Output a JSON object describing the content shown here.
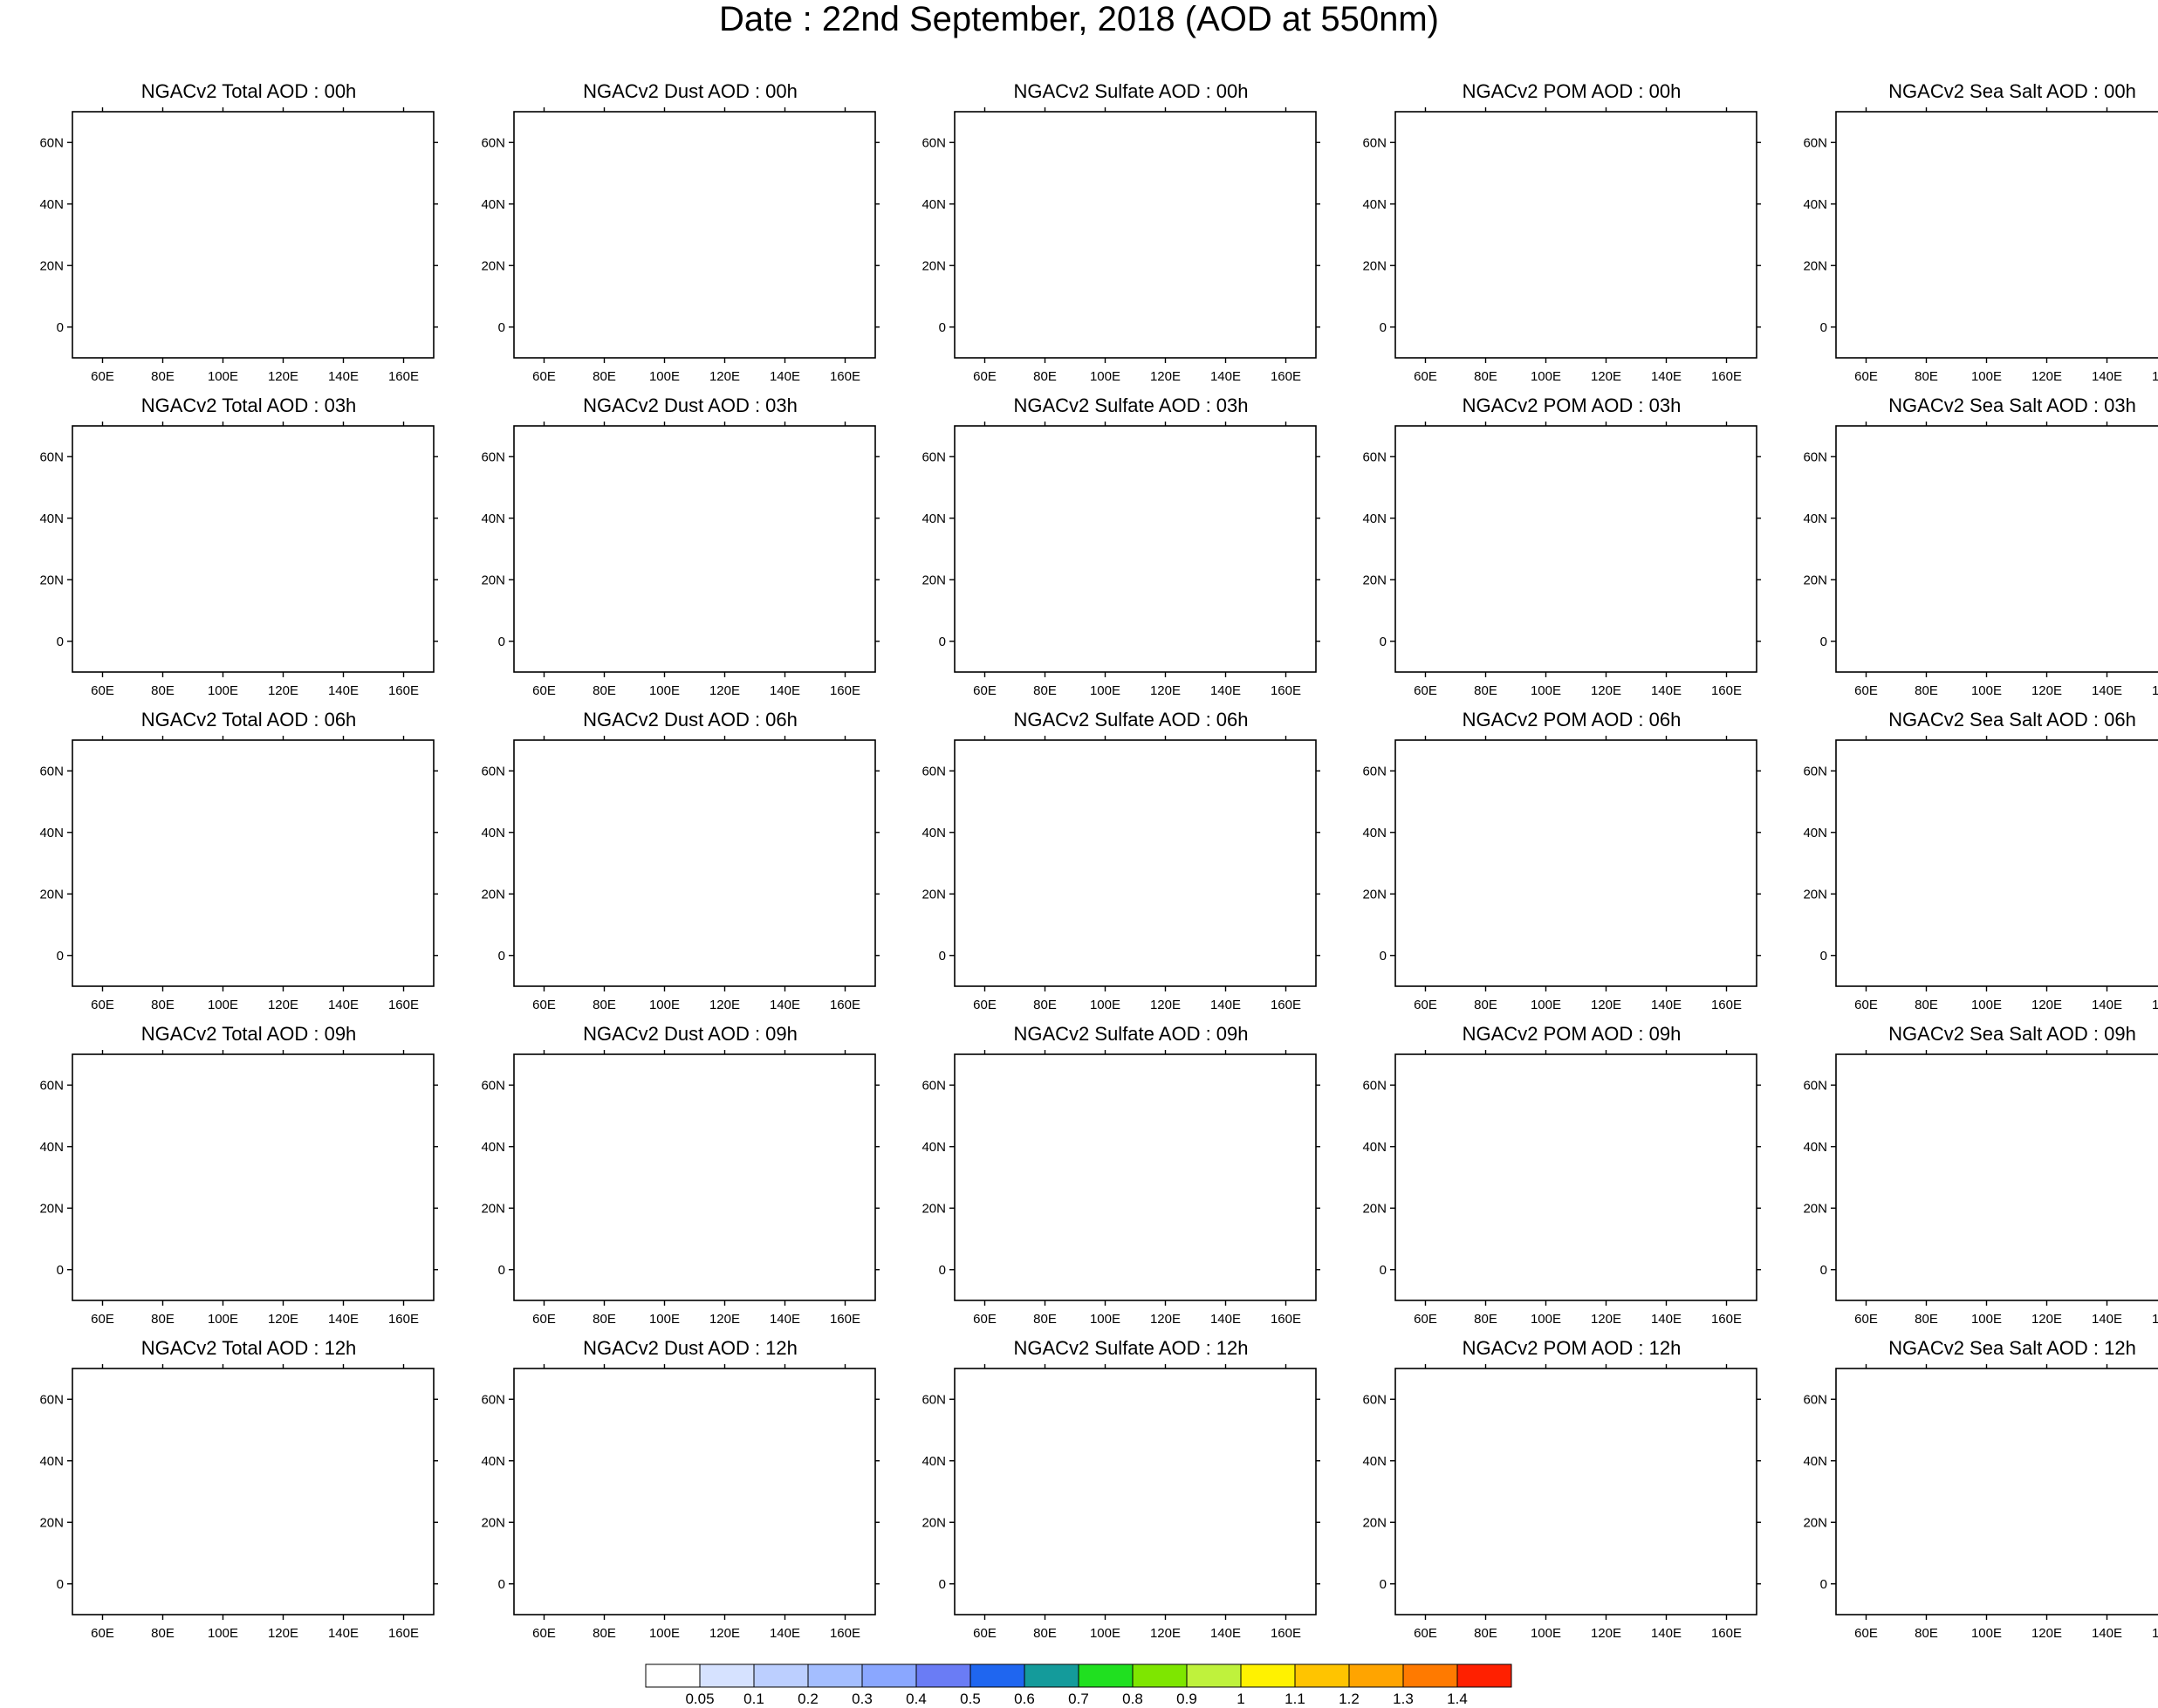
{
  "figure": {
    "title": "Date : 22nd September, 2018 (AOD at 550nm)"
  },
  "axes": {
    "lon_ticks": [
      "60E",
      "80E",
      "100E",
      "120E",
      "140E",
      "160E"
    ],
    "lat_ticks": [
      "60N",
      "40N",
      "20N",
      "0"
    ],
    "lon_range": [
      50,
      170
    ],
    "lat_range": [
      -10,
      70
    ]
  },
  "panels": [
    {
      "title": "NGACv2 Total AOD : 00h",
      "species": "total",
      "hour": "00h"
    },
    {
      "title": "NGACv2 Dust AOD : 00h",
      "species": "dust",
      "hour": "00h"
    },
    {
      "title": "NGACv2 Sulfate AOD : 00h",
      "species": "sulfate",
      "hour": "00h"
    },
    {
      "title": "NGACv2 POM AOD : 00h",
      "species": "pom",
      "hour": "00h"
    },
    {
      "title": "NGACv2 Sea Salt AOD : 00h",
      "species": "seasalt",
      "hour": "00h"
    },
    {
      "title": "NGACv2 Total AOD : 03h",
      "species": "total",
      "hour": "03h"
    },
    {
      "title": "NGACv2 Dust AOD : 03h",
      "species": "dust",
      "hour": "03h"
    },
    {
      "title": "NGACv2 Sulfate AOD : 03h",
      "species": "sulfate",
      "hour": "03h"
    },
    {
      "title": "NGACv2 POM AOD : 03h",
      "species": "pom",
      "hour": "03h"
    },
    {
      "title": "NGACv2 Sea Salt AOD : 03h",
      "species": "seasalt",
      "hour": "03h"
    },
    {
      "title": "NGACv2 Total AOD : 06h",
      "species": "total",
      "hour": "06h"
    },
    {
      "title": "NGACv2 Dust AOD : 06h",
      "species": "dust",
      "hour": "06h"
    },
    {
      "title": "NGACv2 Sulfate AOD : 06h",
      "species": "sulfate",
      "hour": "06h"
    },
    {
      "title": "NGACv2 POM AOD : 06h",
      "species": "pom",
      "hour": "06h"
    },
    {
      "title": "NGACv2 Sea Salt AOD : 06h",
      "species": "seasalt",
      "hour": "06h"
    },
    {
      "title": "NGACv2 Total AOD : 09h",
      "species": "total",
      "hour": "09h"
    },
    {
      "title": "NGACv2 Dust AOD : 09h",
      "species": "dust",
      "hour": "09h"
    },
    {
      "title": "NGACv2 Sulfate AOD : 09h",
      "species": "sulfate",
      "hour": "09h"
    },
    {
      "title": "NGACv2 POM AOD : 09h",
      "species": "pom",
      "hour": "09h"
    },
    {
      "title": "NGACv2 Sea Salt  AOD : 09h",
      "species": "seasalt",
      "hour": "09h"
    },
    {
      "title": "NGACv2 Total AOD  : 12h",
      "species": "total",
      "hour": "12h"
    },
    {
      "title": "NGACv2 Dust AOD : 12h",
      "species": "dust",
      "hour": "12h"
    },
    {
      "title": "NGACv2 Sulfate AOD : 12h",
      "species": "sulfate",
      "hour": "12h"
    },
    {
      "title": "NGACv2 POM  AOD : 12h",
      "species": "pom",
      "hour": "12h"
    },
    {
      "title": "NGACv2 Sea Salt  AOD : 12h",
      "species": "seasalt",
      "hour": "12h"
    }
  ],
  "colorbar": {
    "labels": [
      "0.05",
      "0.1",
      "0.2",
      "0.3",
      "0.4",
      "0.5",
      "0.6",
      "0.7",
      "0.8",
      "0.9",
      "1",
      "1.1",
      "1.2",
      "1.3",
      "1.4"
    ],
    "colors": [
      "#ffffff",
      "#d6e2ff",
      "#bccfff",
      "#a4beff",
      "#8aa7ff",
      "#6a7cf5",
      "#1f66f0",
      "#149b9b",
      "#20e020",
      "#7ee600",
      "#bff23c",
      "#fff200",
      "#ffc400",
      "#ffa400",
      "#ff7a00",
      "#ff2000"
    ]
  }
}
